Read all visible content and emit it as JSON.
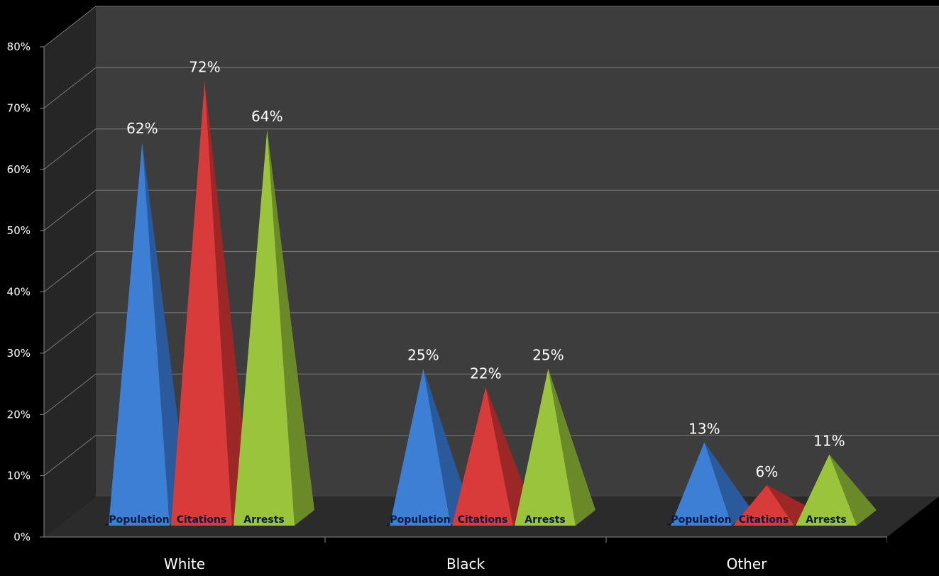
{
  "chart_data": {
    "type": "bar",
    "style": "3d-pyramid",
    "categories": [
      "White",
      "Black",
      "Other"
    ],
    "series": [
      {
        "name": "Population",
        "values": [
          62,
          25,
          13
        ],
        "color": "#3d7fd4",
        "side": "#2a5a9c"
      },
      {
        "name": "Citations",
        "values": [
          72,
          22,
          6
        ],
        "color": "#d93a3a",
        "side": "#9b2727"
      },
      {
        "name": "Arrests",
        "values": [
          64,
          25,
          11
        ],
        "color": "#9bc43d",
        "side": "#6a8a2a"
      }
    ],
    "data_labels": [
      [
        "62%",
        "25%",
        "13%"
      ],
      [
        "72%",
        "22%",
        "6%"
      ],
      [
        "64%",
        "25%",
        "11%"
      ]
    ],
    "series_labels": [
      "Population",
      "Citations",
      "Arrests"
    ],
    "y_ticks": [
      "0%",
      "10%",
      "20%",
      "30%",
      "40%",
      "50%",
      "60%",
      "70%",
      "80%"
    ],
    "ylim": [
      0,
      80
    ],
    "grid": true,
    "legend": "none",
    "colors": {
      "background": "#000000",
      "back_wall": "#3d3d3d",
      "side_wall": "#262626",
      "floor": "#2b2b2b",
      "grid": "#7a7a7a",
      "text": "#ffffff",
      "base_label": "#0a1a40"
    }
  }
}
